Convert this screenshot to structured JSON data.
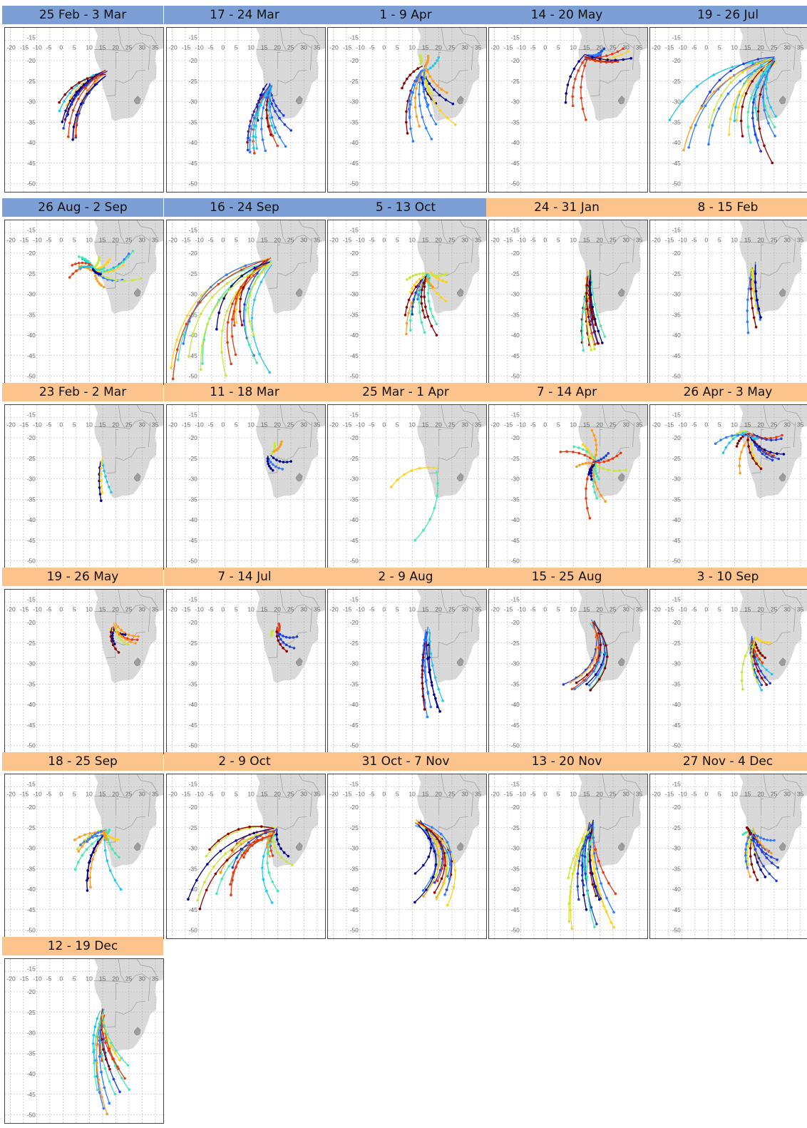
{
  "map": {
    "x_tick_labels": [
      "-20",
      "-15",
      "-10",
      "-5",
      "0",
      "5",
      "10",
      "15",
      "20",
      "25",
      "30",
      "35"
    ],
    "y_tick_labels": [
      "-15",
      "-20",
      "-25",
      "-30",
      "-35",
      "-40",
      "-45",
      "-50"
    ],
    "land_color": "#d9d9d9",
    "border_color": "#9a9a9a",
    "grid_color": "#b0b0b0"
  },
  "colors": {
    "blue_header": "#7ca0d6",
    "orange_header": "#fcc38d",
    "trajectory_palette": [
      "#00008b",
      "#1f3fd9",
      "#2f7bff",
      "#22c7e8",
      "#46e6b0",
      "#c7e838",
      "#ffd21a",
      "#ff9a1a",
      "#e83a12",
      "#8b0000"
    ]
  },
  "panels": [
    {
      "title": "25 Feb - 3 Mar",
      "header": "blue",
      "origin": [
        16,
        -23
      ],
      "bundle": "sw-short",
      "traj_count": 12
    },
    {
      "title": "17 - 24 Mar",
      "header": "blue",
      "origin": [
        17,
        -26
      ],
      "bundle": "s-medium",
      "traj_count": 14
    },
    {
      "title": "1 - 9 Apr",
      "header": "blue",
      "origin": [
        14,
        -22
      ],
      "bundle": "mixed-n",
      "traj_count": 16
    },
    {
      "title": "14 - 20 May",
      "header": "blue",
      "origin": [
        15,
        -19
      ],
      "bundle": "ne-sw",
      "traj_count": 12
    },
    {
      "title": "19 - 26 Jul",
      "header": "blue",
      "origin": [
        25,
        -20
      ],
      "bundle": "wide-sw",
      "traj_count": 18
    },
    {
      "title": "26 Aug - 2 Sep",
      "header": "blue",
      "origin": [
        12,
        -24
      ],
      "bundle": "ew-north",
      "traj_count": 16
    },
    {
      "title": "16 - 24 Sep",
      "header": "blue",
      "origin": [
        17,
        -22
      ],
      "bundle": "long-sw",
      "traj_count": 18
    },
    {
      "title": "5 - 13 Oct",
      "header": "blue",
      "origin": [
        16,
        -25
      ],
      "bundle": "mixed-w",
      "traj_count": 16
    },
    {
      "title": "24 - 31 Jan",
      "header": "orange",
      "origin": [
        16,
        -25
      ],
      "bundle": "s-narrow",
      "traj_count": 14
    },
    {
      "title": "8 - 15 Feb",
      "header": "orange",
      "origin": [
        17,
        -23
      ],
      "bundle": "s-thin",
      "traj_count": 6
    },
    {
      "title": "23 Feb - 2 Mar",
      "header": "orange",
      "origin": [
        15,
        -25
      ],
      "bundle": "s-thin",
      "traj_count": 3
    },
    {
      "title": "11 - 18 Mar",
      "header": "orange",
      "origin": [
        17,
        -24
      ],
      "bundle": "e-short",
      "traj_count": 5
    },
    {
      "title": "25 Mar - 1 Apr",
      "header": "orange",
      "origin": [
        19,
        -27
      ],
      "bundle": "two-arcs",
      "traj_count": 2
    },
    {
      "title": "7 - 14 Apr",
      "header": "orange",
      "origin": [
        18,
        -26
      ],
      "bundle": "mixed-n",
      "traj_count": 14
    },
    {
      "title": "26 Apr - 3 May",
      "header": "orange",
      "origin": [
        16,
        -19
      ],
      "bundle": "ew-north",
      "traj_count": 14
    },
    {
      "title": "19 - 26 May",
      "header": "orange",
      "origin": [
        19,
        -21
      ],
      "bundle": "e-short",
      "traj_count": 8
    },
    {
      "title": "7 - 14 Jul",
      "header": "orange",
      "origin": [
        19,
        -22
      ],
      "bundle": "e-short",
      "traj_count": 5
    },
    {
      "title": "2 - 9 Aug",
      "header": "orange",
      "origin": [
        16,
        -22
      ],
      "bundle": "s-narrow",
      "traj_count": 8
    },
    {
      "title": "15 - 25 Aug",
      "header": "orange",
      "origin": [
        17,
        -20
      ],
      "bundle": "j-hook",
      "traj_count": 10
    },
    {
      "title": "3 - 10 Sep",
      "header": "orange",
      "origin": [
        17,
        -24
      ],
      "bundle": "cluster",
      "traj_count": 12
    },
    {
      "title": "18 - 25 Sep",
      "header": "orange",
      "origin": [
        16,
        -26
      ],
      "bundle": "mixed-w",
      "traj_count": 14
    },
    {
      "title": "2 - 9 Oct",
      "header": "orange",
      "origin": [
        19,
        -26
      ],
      "bundle": "wide-sw",
      "traj_count": 18
    },
    {
      "title": "31 Oct - 7 Nov",
      "header": "orange",
      "origin": [
        12,
        -24
      ],
      "bundle": "loop-w",
      "traj_count": 14
    },
    {
      "title": "13 - 20 Nov",
      "header": "orange",
      "origin": [
        17,
        -24
      ],
      "bundle": "s-fan",
      "traj_count": 18
    },
    {
      "title": "27 Nov - 4 Dec",
      "header": "orange",
      "origin": [
        17,
        -26
      ],
      "bundle": "cluster",
      "traj_count": 14
    },
    {
      "title": "12 - 19 Dec",
      "header": "orange",
      "origin": [
        15,
        -25
      ],
      "bundle": "s-fan",
      "traj_count": 14
    }
  ]
}
